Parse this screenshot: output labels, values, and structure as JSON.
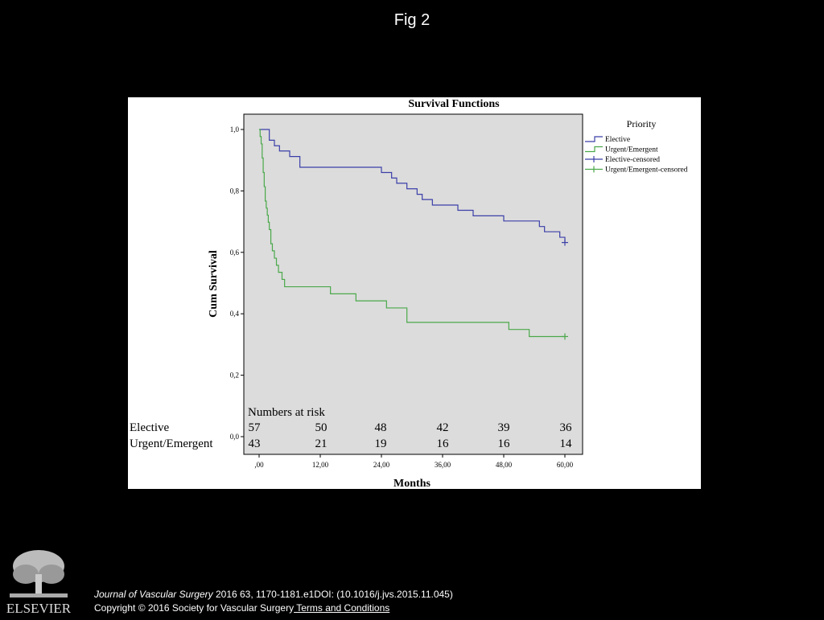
{
  "slide": {
    "title": "Fig 2"
  },
  "chart_data": {
    "type": "line",
    "title": "Survival Functions",
    "xlabel": "Months",
    "ylabel": "Cum Survival",
    "xlim": [
      -5,
      65
    ],
    "ylim": [
      0,
      1.0
    ],
    "x_ticks": [
      0,
      12,
      24,
      36,
      48,
      60
    ],
    "x_tick_labels": [
      ",00",
      "12,00",
      "24,00",
      "36,00",
      "48,00",
      "60,00"
    ],
    "y_ticks": [
      0,
      0.2,
      0.4,
      0.6,
      0.8,
      1.0
    ],
    "y_tick_labels": [
      "0,0",
      "0,2",
      "0,4",
      "0,6",
      "0,8",
      "1,0"
    ],
    "grid": false,
    "legend_title": "Priority",
    "legend_position": "right",
    "legend_entries": [
      "Elective",
      "Urgent/Emergent",
      "Elective-censored",
      "Urgent/Emergent-censored"
    ],
    "series": [
      {
        "name": "Elective",
        "color": "#3b3fa8",
        "step": true,
        "x": [
          0,
          2,
          3,
          4,
          6,
          8,
          18,
          24,
          26,
          27,
          29,
          31,
          32,
          34,
          39,
          42,
          48,
          55,
          56,
          59,
          60
        ],
        "y": [
          1.0,
          0.965,
          0.947,
          0.93,
          0.912,
          0.877,
          0.877,
          0.86,
          0.842,
          0.825,
          0.807,
          0.789,
          0.772,
          0.754,
          0.737,
          0.719,
          0.702,
          0.684,
          0.667,
          0.649,
          0.632
        ],
        "censored": [
          {
            "x": 60,
            "y": 0.632
          }
        ]
      },
      {
        "name": "Urgent/Emergent",
        "color": "#4aa84a",
        "step": true,
        "x": [
          0,
          0.2,
          0.4,
          0.6,
          0.8,
          1.0,
          1.2,
          1.4,
          1.6,
          1.8,
          2.0,
          2.3,
          2.6,
          3.0,
          3.4,
          3.8,
          4.5,
          5.0,
          14,
          19,
          25,
          29,
          49,
          53,
          60
        ],
        "y": [
          1.0,
          0.977,
          0.953,
          0.907,
          0.86,
          0.814,
          0.767,
          0.744,
          0.721,
          0.698,
          0.674,
          0.628,
          0.605,
          0.581,
          0.558,
          0.535,
          0.512,
          0.488,
          0.465,
          0.442,
          0.419,
          0.372,
          0.349,
          0.326,
          0.326
        ],
        "censored": [
          {
            "x": 60,
            "y": 0.326
          }
        ]
      }
    ],
    "numbers_at_risk": {
      "title": "Numbers at risk",
      "rows": [
        {
          "label": "Elective",
          "values": [
            57,
            50,
            48,
            42,
            39,
            36
          ]
        },
        {
          "label": "Urgent/Emergent",
          "values": [
            43,
            21,
            19,
            16,
            16,
            14
          ]
        }
      ]
    }
  },
  "footer": {
    "logo_label": "ELSEVIER",
    "journal": "Journal of Vascular Surgery",
    "citation_rest": " 2016 63, 1170-1181.e1DOI: (10.1016/j.jvs.2015.11.045)",
    "copyright": "Copyright © 2016 Society for Vascular Surgery",
    "terms_link": " Terms and Conditions"
  }
}
